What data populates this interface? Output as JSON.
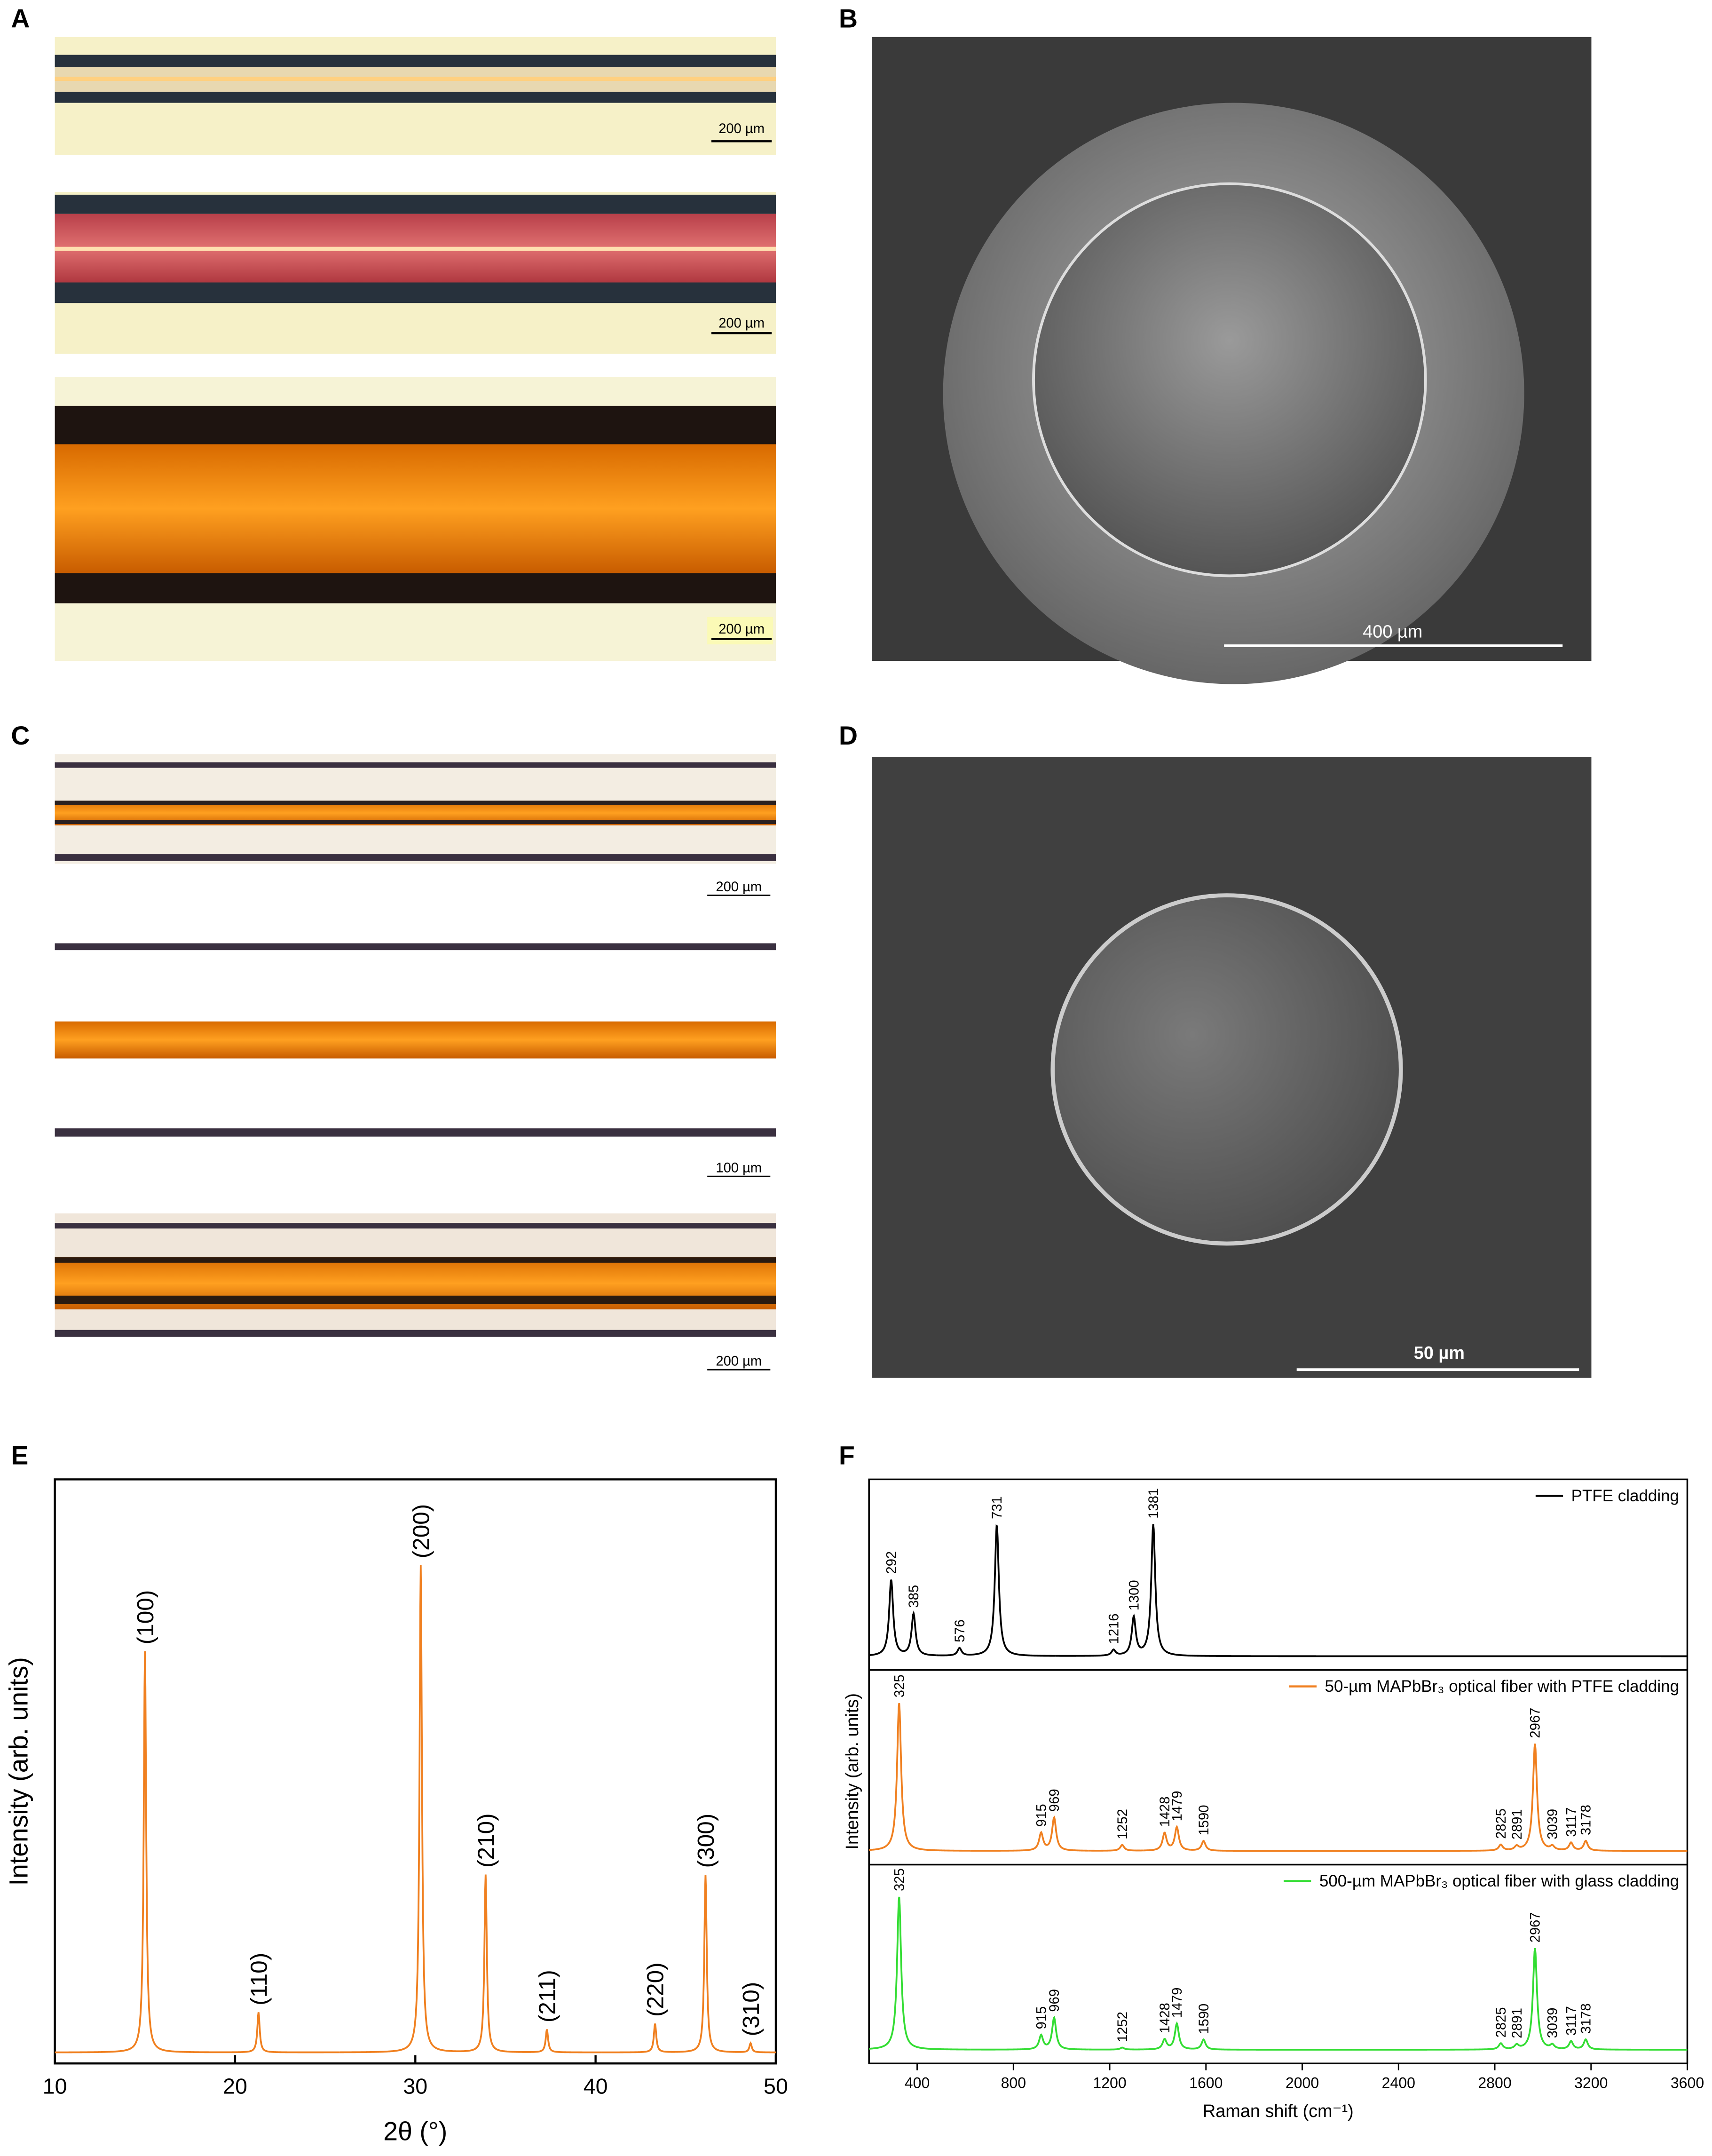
{
  "panel_labels": [
    "A",
    "B",
    "C",
    "D",
    "E",
    "F"
  ],
  "scale_bars": {
    "A": [
      "200 µm",
      "200 µm",
      "200 µm"
    ],
    "B": [
      "400 µm"
    ],
    "C": [
      "200 µm",
      "100 µm",
      "200 µm"
    ],
    "D": [
      "50 µm"
    ]
  },
  "chart_data": [
    {
      "type": "line",
      "xlabel": "2θ (°)",
      "ylabel": "Intensity (arb. units)",
      "color": "#f08020",
      "x": [
        15.0,
        21.3,
        30.3,
        33.9,
        37.3,
        43.3,
        46.1,
        48.6
      ],
      "values": [
        70,
        7,
        85,
        31,
        4,
        5,
        31,
        1.6
      ],
      "peak_labels": [
        "(100)",
        "(110)",
        "(200)",
        "(210)",
        "(211)",
        "(220)",
        "(300)",
        "(310)"
      ],
      "xlim": [
        10,
        50
      ],
      "xticks": [
        10,
        20,
        30,
        40,
        50
      ],
      "ylim": [
        0,
        100
      ]
    },
    {
      "type": "line",
      "xlabel": "Raman shift (cm⁻¹)",
      "ylabel": "Intensity (arb. units)",
      "xlim": [
        200,
        3600
      ],
      "xticks": [
        400,
        800,
        1200,
        1600,
        2000,
        2400,
        2800,
        3200,
        3600
      ],
      "ylim": [
        0,
        100
      ],
      "series": [
        {
          "name": "PTFE cladding",
          "color": "#000000",
          "x": [
            292,
            385,
            576,
            731,
            1216,
            1300,
            1381
          ],
          "values": [
            40,
            22,
            4,
            69,
            3,
            20,
            69
          ]
        },
        {
          "name": "50-µm MAPbBr₃ optical fiber with PTFE cladding",
          "color": "#f08020",
          "x": [
            325,
            915,
            969,
            1252,
            1428,
            1479,
            1590,
            2825,
            2891,
            2967,
            3039,
            3117,
            3178
          ],
          "values": [
            76,
            9,
            17,
            3,
            9,
            12,
            5,
            3,
            2,
            55,
            2,
            4,
            5
          ]
        },
        {
          "name": "500-µm MAPbBr₃ optical fiber with glass cladding",
          "color": "#33dd33",
          "x": [
            325,
            915,
            969,
            1252,
            1428,
            1479,
            1590,
            2825,
            2891,
            2967,
            3039,
            3117,
            3178
          ],
          "values": [
            77,
            7,
            16,
            1,
            5,
            13,
            5,
            3,
            2,
            51,
            2,
            4,
            5
          ]
        }
      ]
    }
  ]
}
